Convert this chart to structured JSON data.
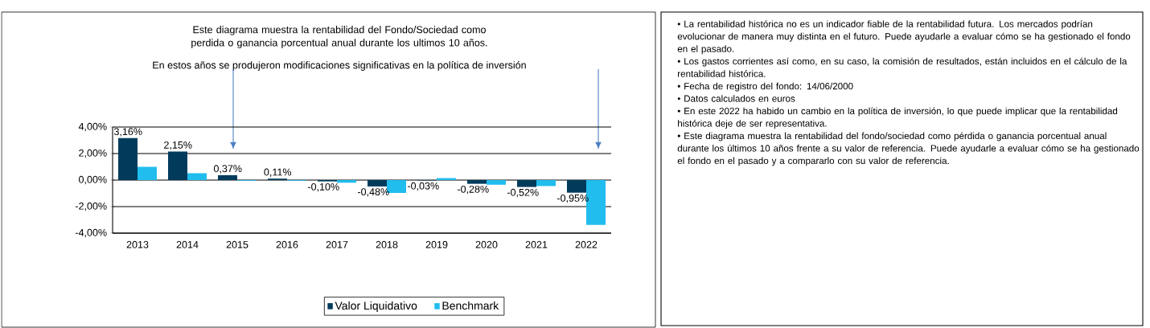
{
  "chart_data": {
    "type": "bar",
    "title": "Este diagrama muestra la rentabilidad del Fondo/Sociedad como perdida o ganancia porcentual anual durante los ultimos 10 años.",
    "subtitle": "En estos años se produjeron modificaciones significativas en la política de inversión",
    "categories": [
      "2013",
      "2014",
      "2015",
      "2016",
      "2017",
      "2018",
      "2019",
      "2020",
      "2021",
      "2022"
    ],
    "series": [
      {
        "name": "Valor Liquidativo",
        "color": "#003b5c",
        "values": [
          3.16,
          2.15,
          0.37,
          0.11,
          -0.1,
          -0.48,
          -0.03,
          -0.28,
          -0.52,
          -0.95
        ],
        "value_labels": [
          "3,16%",
          "2,15%",
          "0,37%",
          "0,11%",
          "-0,10%",
          "-0,48%",
          "-0,03%",
          "-0,28%",
          "-0,52%",
          "-0,95%"
        ]
      },
      {
        "name": "Benchmark",
        "color": "#21bdee",
        "values": [
          1.0,
          0.52,
          -0.05,
          -0.05,
          -0.2,
          -0.97,
          0.15,
          -0.35,
          -0.45,
          -3.38
        ]
      }
    ],
    "ylim": [
      -4,
      4
    ],
    "yticks": [
      {
        "value": -4,
        "label": "-4,00%"
      },
      {
        "value": -2,
        "label": "-2,00%"
      },
      {
        "value": 0,
        "label": "0,00%"
      },
      {
        "value": 2,
        "label": "2,00%"
      },
      {
        "value": 4,
        "label": "4,00%"
      }
    ],
    "grid": "y",
    "legend": "bottom",
    "annotations": [
      "• La rentabilidad histórica no es un indicador fiable de la rentabilidad futura. Los mercados podrían evolucionar de manera muy distinta en el futuro. Puede ayudarle a evaluar cómo se ha gestionado el fondo en el pasado.",
      "• Los gastos corrientes así como, en su caso, la comisión de resultados, están incluidos en el cálculo de la rentabilidad histórica.",
      "• Fecha de registro del fondo: 14/06/2000",
      "• Datos calculados en euros",
      "• En este 2022 ha habido un cambio en la política de inversión, lo que puede implicar que la rentabilidad histórica deje de ser representativa.",
      "• Este diagrama muestra la rentabilidad del fondo/sociedad como pérdida o ganancia porcentual anual durante los últimos 10 años frente a su valor de referencia. Puede ayudarle a evaluar cómo se ha gestionado el fondo en el pasado y a compararlo con su valor de referencia."
    ]
  }
}
